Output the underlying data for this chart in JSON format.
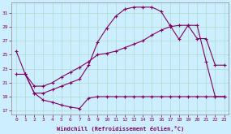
{
  "xlabel": "Windchill (Refroidissement éolien,°C)",
  "bg_color": "#cceeff",
  "grid_color": "#aaddcc",
  "line_color": "#800060",
  "x_ticks": [
    0,
    1,
    2,
    3,
    4,
    5,
    6,
    7,
    8,
    9,
    10,
    11,
    12,
    13,
    14,
    15,
    16,
    17,
    18,
    19,
    20,
    21,
    22,
    23
  ],
  "y_ticks": [
    17,
    19,
    21,
    23,
    25,
    27,
    29,
    31
  ],
  "ylim": [
    16.5,
    32.5
  ],
  "xlim": [
    -0.5,
    23.5
  ],
  "lx1": [
    0,
    1,
    2,
    3,
    4,
    5,
    6,
    7,
    8,
    9,
    10,
    11,
    12,
    13,
    14,
    15,
    16,
    17,
    18,
    19,
    20,
    21,
    22,
    23
  ],
  "ly1": [
    25.5,
    22.2,
    19.5,
    18.5,
    18.2,
    17.8,
    17.5,
    17.3,
    18.8,
    19.0,
    19.0,
    19.0,
    19.0,
    19.0,
    19.0,
    19.0,
    19.0,
    19.0,
    19.0,
    19.0,
    19.0,
    19.0,
    19.0,
    19.0
  ],
  "lx2": [
    1,
    2,
    3,
    4,
    5,
    6,
    7,
    8,
    9,
    10,
    11,
    12,
    13,
    14,
    15,
    16,
    17,
    18,
    19,
    20,
    21,
    22,
    23
  ],
  "ly2": [
    22.2,
    19.5,
    19.5,
    20.0,
    20.5,
    21.0,
    21.5,
    23.5,
    26.8,
    28.8,
    30.5,
    31.5,
    31.8,
    31.8,
    31.8,
    31.2,
    29.2,
    27.2,
    29.2,
    29.2,
    24.0,
    19.0,
    19.0
  ],
  "lx3": [
    0,
    1,
    2,
    3,
    4,
    5,
    6,
    7,
    8,
    9,
    10,
    11,
    12,
    13,
    14,
    15,
    16,
    17,
    18,
    19,
    20,
    21,
    22,
    23
  ],
  "ly3": [
    22.2,
    22.2,
    20.5,
    20.5,
    21.0,
    21.8,
    22.5,
    23.2,
    24.0,
    25.0,
    25.2,
    25.5,
    26.0,
    26.5,
    27.0,
    27.8,
    28.5,
    29.0,
    29.2,
    29.2,
    27.3,
    27.3,
    23.5,
    23.5
  ]
}
